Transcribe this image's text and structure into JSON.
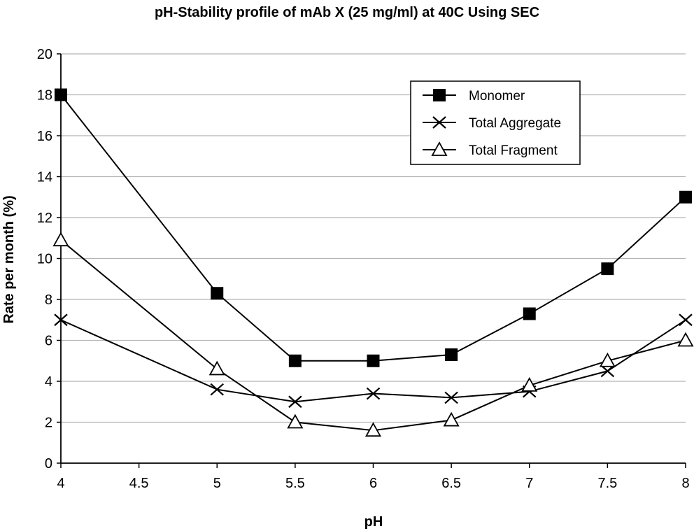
{
  "chart_data": {
    "type": "line",
    "title": "pH-Stability profile of mAb X (25 mg/ml) at 40C Using SEC",
    "xlabel": "pH",
    "ylabel": "Rate per month (%)",
    "xlim": [
      4,
      8
    ],
    "ylim": [
      0,
      20
    ],
    "xticks": [
      "4",
      "4.5",
      "5",
      "5.5",
      "6",
      "6.5",
      "7",
      "7.5",
      "8"
    ],
    "yticks": [
      "0",
      "2",
      "4",
      "6",
      "8",
      "10",
      "12",
      "14",
      "16",
      "18",
      "20"
    ],
    "grid": "horizontal",
    "legend_position": "top-right",
    "x": [
      4,
      5,
      5.5,
      6,
      6.5,
      7,
      7.5,
      8
    ],
    "series": [
      {
        "name": "Monomer",
        "marker": "filled-square",
        "values": [
          18,
          8.3,
          5,
          5,
          5.3,
          7.3,
          9.5,
          13
        ]
      },
      {
        "name": "Total Aggregate",
        "marker": "x",
        "values": [
          7,
          3.6,
          3,
          3.4,
          3.2,
          3.5,
          4.5,
          7
        ]
      },
      {
        "name": "Total Fragment",
        "marker": "open-triangle",
        "values": [
          10.9,
          4.6,
          2,
          1.6,
          2.1,
          3.8,
          5,
          6
        ]
      }
    ]
  }
}
